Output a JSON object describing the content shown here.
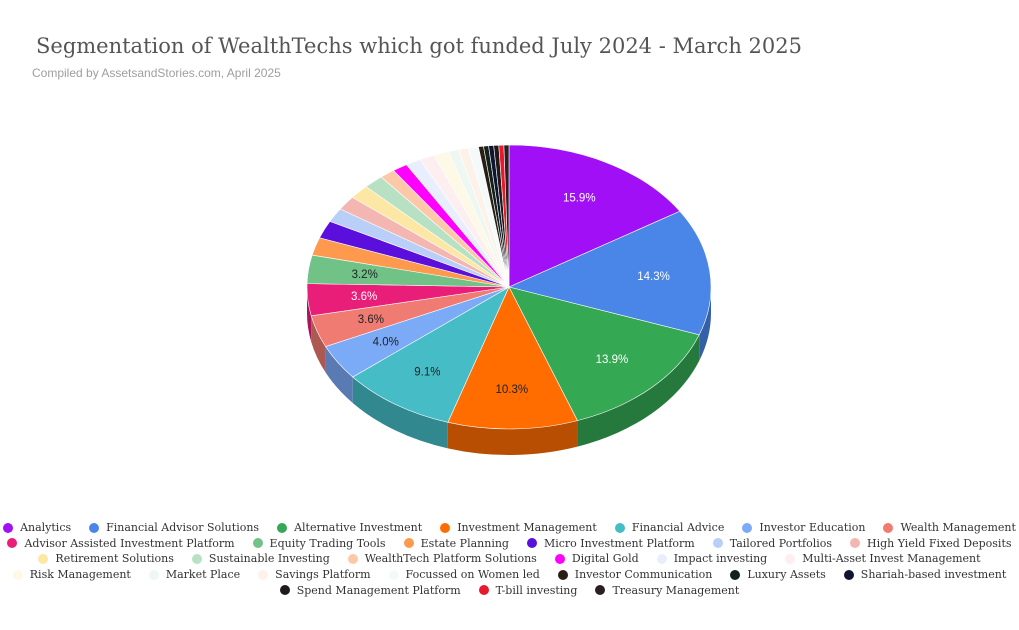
{
  "title": "Segmentation of WealthTechs which got funded July 2024 - March 2025",
  "subtitle": "Compiled by AssetsandStories.com, April 2025",
  "chart_data": {
    "type": "pie",
    "style": "3d",
    "legend_position": "bottom",
    "slices": [
      {
        "name": "Analytics",
        "value": 15.9,
        "color": "#a00ff5",
        "label": "15.9%"
      },
      {
        "name": "Financial Advisor Solutions",
        "value": 14.3,
        "color": "#4a86e8",
        "label": "14.3%"
      },
      {
        "name": "Alternative Investment",
        "value": 13.9,
        "color": "#34a853",
        "label": "13.9%"
      },
      {
        "name": "Investment Management",
        "value": 10.3,
        "color": "#ff6d01",
        "label": "10.3%"
      },
      {
        "name": "Financial Advice",
        "value": 9.1,
        "color": "#46bdc6",
        "label": "9.1%"
      },
      {
        "name": "Investor Education",
        "value": 4.0,
        "color": "#7baaf7",
        "label": "4.0%"
      },
      {
        "name": "Wealth Management",
        "value": 3.6,
        "color": "#f07b72",
        "label": "3.6%"
      },
      {
        "name": "Advisor Assisted Investment Platform",
        "value": 3.6,
        "color": "#e91e79",
        "label": "3.6%"
      },
      {
        "name": "Equity Trading Tools",
        "value": 3.2,
        "color": "#71c287",
        "label": "3.2%"
      },
      {
        "name": "Estate Planning",
        "value": 2.0,
        "color": "#ff994d",
        "label": ""
      },
      {
        "name": "Micro Investment Platform",
        "value": 2.0,
        "color": "#5b0fdc",
        "label": ""
      },
      {
        "name": "Tailored Portfolios",
        "value": 1.6,
        "color": "#b9cff7",
        "label": ""
      },
      {
        "name": "High Yield Fixed Deposits",
        "value": 1.6,
        "color": "#f4b6b1",
        "label": ""
      },
      {
        "name": "Retirement Solutions",
        "value": 1.6,
        "color": "#fce7a5",
        "label": ""
      },
      {
        "name": "Sustainable Investing",
        "value": 1.6,
        "color": "#b7e1c2",
        "label": ""
      },
      {
        "name": "WealthTech Platform Solutions",
        "value": 1.2,
        "color": "#fdc8a8",
        "label": ""
      },
      {
        "name": "Digital Gold",
        "value": 1.2,
        "color": "#ff00ff",
        "label": ""
      },
      {
        "name": "Impact investing",
        "value": 1.2,
        "color": "#e8eefc",
        "label": ""
      },
      {
        "name": "Multi-Asset Invest Management",
        "value": 1.2,
        "color": "#fdeef0",
        "label": ""
      },
      {
        "name": "Risk Management",
        "value": 1.2,
        "color": "#fef8e6",
        "label": ""
      },
      {
        "name": "Market Place",
        "value": 0.8,
        "color": "#eef7f1",
        "label": ""
      },
      {
        "name": "Savings Platform",
        "value": 0.8,
        "color": "#fdf2ea",
        "label": ""
      },
      {
        "name": "Focussed on Women led",
        "value": 0.8,
        "color": "#f4fafa",
        "label": ""
      },
      {
        "name": "Investor Communication",
        "value": 0.4,
        "color": "#2a1d14",
        "label": ""
      },
      {
        "name": "Luxury Assets",
        "value": 0.4,
        "color": "#12221a",
        "label": ""
      },
      {
        "name": "Shariah-based investment",
        "value": 0.4,
        "color": "#101430",
        "label": ""
      },
      {
        "name": "Spend Management Platform",
        "value": 0.4,
        "color": "#1f1a1a",
        "label": ""
      },
      {
        "name": "T-bill investing",
        "value": 0.4,
        "color": "#e8192c",
        "label": ""
      },
      {
        "name": "Treasury Management",
        "value": 0.4,
        "color": "#2b1f22",
        "label": ""
      }
    ]
  }
}
